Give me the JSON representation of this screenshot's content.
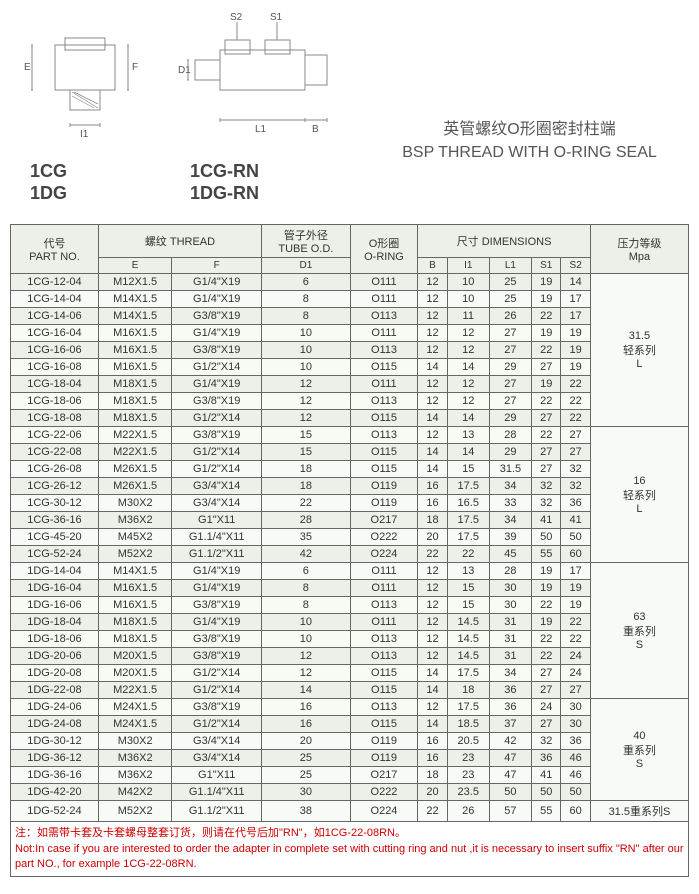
{
  "diagrams": {
    "left_labels": [
      "1CG",
      "1DG"
    ],
    "right_labels": [
      "1CG-RN",
      "1DG-RN"
    ],
    "dims_left": {
      "E": "E",
      "F": "F",
      "I1": "I1"
    },
    "dims_right": {
      "D1": "D1",
      "S2": "S2",
      "S1": "S1",
      "L1": "L1",
      "B": "B"
    }
  },
  "title": {
    "cn": "英管螺纹O形圈密封柱端",
    "en": "BSP THREAD WITH O-RING SEAL"
  },
  "headers": {
    "part_no": "代号\nPART NO.",
    "thread": "螺纹 THREAD",
    "tube_od": "管子外径\nTUBE O.D.",
    "oring": "O形圈\nO-RING",
    "dimensions": "尺寸 DIMENSIONS",
    "pressure": "压力等级\nMpa",
    "E": "E",
    "F": "F",
    "D1": "D1",
    "B": "B",
    "I1": "I1",
    "L1": "L1",
    "S1": "S1",
    "S2": "S2"
  },
  "rows": [
    {
      "pn": "1CG-12-04",
      "E": "M12X1.5",
      "F": "G1/4\"X19",
      "D1": "6",
      "O": "O111",
      "B": "12",
      "I1": "10",
      "L1": "25",
      "S1": "19",
      "S2": "14"
    },
    {
      "pn": "1CG-14-04",
      "E": "M14X1.5",
      "F": "G1/4\"X19",
      "D1": "8",
      "O": "O111",
      "B": "12",
      "I1": "10",
      "L1": "25",
      "S1": "19",
      "S2": "17"
    },
    {
      "pn": "1CG-14-06",
      "E": "M14X1.5",
      "F": "G3/8\"X19",
      "D1": "8",
      "O": "O113",
      "B": "12",
      "I1": "11",
      "L1": "26",
      "S1": "22",
      "S2": "17"
    },
    {
      "pn": "1CG-16-04",
      "E": "M16X1.5",
      "F": "G1/4\"X19",
      "D1": "10",
      "O": "O111",
      "B": "12",
      "I1": "12",
      "L1": "27",
      "S1": "19",
      "S2": "19"
    },
    {
      "pn": "1CG-16-06",
      "E": "M16X1.5",
      "F": "G3/8\"X19",
      "D1": "10",
      "O": "O113",
      "B": "12",
      "I1": "12",
      "L1": "27",
      "S1": "22",
      "S2": "19"
    },
    {
      "pn": "1CG-16-08",
      "E": "M16X1.5",
      "F": "G1/2\"X14",
      "D1": "10",
      "O": "O115",
      "B": "14",
      "I1": "14",
      "L1": "29",
      "S1": "27",
      "S2": "19"
    },
    {
      "pn": "1CG-18-04",
      "E": "M18X1.5",
      "F": "G1/4\"X19",
      "D1": "12",
      "O": "O111",
      "B": "12",
      "I1": "12",
      "L1": "27",
      "S1": "19",
      "S2": "22"
    },
    {
      "pn": "1CG-18-06",
      "E": "M18X1.5",
      "F": "G3/8\"X19",
      "D1": "12",
      "O": "O113",
      "B": "12",
      "I1": "12",
      "L1": "27",
      "S1": "22",
      "S2": "22"
    },
    {
      "pn": "1CG-18-08",
      "E": "M18X1.5",
      "F": "G1/2\"X14",
      "D1": "12",
      "O": "O115",
      "B": "14",
      "I1": "14",
      "L1": "29",
      "S1": "27",
      "S2": "22"
    },
    {
      "pn": "1CG-22-06",
      "E": "M22X1.5",
      "F": "G3/8\"X19",
      "D1": "15",
      "O": "O113",
      "B": "12",
      "I1": "13",
      "L1": "28",
      "S1": "22",
      "S2": "27"
    },
    {
      "pn": "1CG-22-08",
      "E": "M22X1.5",
      "F": "G1/2\"X14",
      "D1": "15",
      "O": "O115",
      "B": "14",
      "I1": "14",
      "L1": "29",
      "S1": "27",
      "S2": "27"
    },
    {
      "pn": "1CG-26-08",
      "E": "M26X1.5",
      "F": "G1/2\"X14",
      "D1": "18",
      "O": "O115",
      "B": "14",
      "I1": "15",
      "L1": "31.5",
      "S1": "27",
      "S2": "32"
    },
    {
      "pn": "1CG-26-12",
      "E": "M26X1.5",
      "F": "G3/4\"X14",
      "D1": "18",
      "O": "O119",
      "B": "16",
      "I1": "17.5",
      "L1": "34",
      "S1": "32",
      "S2": "32"
    },
    {
      "pn": "1CG-30-12",
      "E": "M30X2",
      "F": "G3/4\"X14",
      "D1": "22",
      "O": "O119",
      "B": "16",
      "I1": "16.5",
      "L1": "33",
      "S1": "32",
      "S2": "36"
    },
    {
      "pn": "1CG-36-16",
      "E": "M36X2",
      "F": "G1\"X11",
      "D1": "28",
      "O": "O217",
      "B": "18",
      "I1": "17.5",
      "L1": "34",
      "S1": "41",
      "S2": "41"
    },
    {
      "pn": "1CG-45-20",
      "E": "M45X2",
      "F": "G1.1/4\"X11",
      "D1": "35",
      "O": "O222",
      "B": "20",
      "I1": "17.5",
      "L1": "39",
      "S1": "50",
      "S2": "50"
    },
    {
      "pn": "1CG-52-24",
      "E": "M52X2",
      "F": "G1.1/2\"X11",
      "D1": "42",
      "O": "O224",
      "B": "22",
      "I1": "22",
      "L1": "45",
      "S1": "55",
      "S2": "60"
    },
    {
      "pn": "1DG-14-04",
      "E": "M14X1.5",
      "F": "G1/4\"X19",
      "D1": "6",
      "O": "O111",
      "B": "12",
      "I1": "13",
      "L1": "28",
      "S1": "19",
      "S2": "17"
    },
    {
      "pn": "1DG-16-04",
      "E": "M16X1.5",
      "F": "G1/4\"X19",
      "D1": "8",
      "O": "O111",
      "B": "12",
      "I1": "15",
      "L1": "30",
      "S1": "19",
      "S2": "19"
    },
    {
      "pn": "1DG-16-06",
      "E": "M16X1.5",
      "F": "G3/8\"X19",
      "D1": "8",
      "O": "O113",
      "B": "12",
      "I1": "15",
      "L1": "30",
      "S1": "22",
      "S2": "19"
    },
    {
      "pn": "1DG-18-04",
      "E": "M18X1.5",
      "F": "G1/4\"X19",
      "D1": "10",
      "O": "O111",
      "B": "12",
      "I1": "14.5",
      "L1": "31",
      "S1": "19",
      "S2": "22"
    },
    {
      "pn": "1DG-18-06",
      "E": "M18X1.5",
      "F": "G3/8\"X19",
      "D1": "10",
      "O": "O113",
      "B": "12",
      "I1": "14.5",
      "L1": "31",
      "S1": "22",
      "S2": "22"
    },
    {
      "pn": "1DG-20-06",
      "E": "M20X1.5",
      "F": "G3/8\"X19",
      "D1": "12",
      "O": "O113",
      "B": "12",
      "I1": "14.5",
      "L1": "31",
      "S1": "22",
      "S2": "24"
    },
    {
      "pn": "1DG-20-08",
      "E": "M20X1.5",
      "F": "G1/2\"X14",
      "D1": "12",
      "O": "O115",
      "B": "14",
      "I1": "17.5",
      "L1": "34",
      "S1": "27",
      "S2": "24"
    },
    {
      "pn": "1DG-22-08",
      "E": "M22X1.5",
      "F": "G1/2\"X14",
      "D1": "14",
      "O": "O115",
      "B": "14",
      "I1": "18",
      "L1": "36",
      "S1": "27",
      "S2": "27"
    },
    {
      "pn": "1DG-24-06",
      "E": "M24X1.5",
      "F": "G3/8\"X19",
      "D1": "16",
      "O": "O113",
      "B": "12",
      "I1": "17.5",
      "L1": "36",
      "S1": "24",
      "S2": "30"
    },
    {
      "pn": "1DG-24-08",
      "E": "M24X1.5",
      "F": "G1/2\"X14",
      "D1": "16",
      "O": "O115",
      "B": "14",
      "I1": "18.5",
      "L1": "37",
      "S1": "27",
      "S2": "30"
    },
    {
      "pn": "1DG-30-12",
      "E": "M30X2",
      "F": "G3/4\"X14",
      "D1": "20",
      "O": "O119",
      "B": "16",
      "I1": "20.5",
      "L1": "42",
      "S1": "32",
      "S2": "36"
    },
    {
      "pn": "1DG-36-12",
      "E": "M36X2",
      "F": "G3/4\"X14",
      "D1": "25",
      "O": "O119",
      "B": "16",
      "I1": "23",
      "L1": "47",
      "S1": "36",
      "S2": "46"
    },
    {
      "pn": "1DG-36-16",
      "E": "M36X2",
      "F": "G1\"X11",
      "D1": "25",
      "O": "O217",
      "B": "18",
      "I1": "23",
      "L1": "47",
      "S1": "41",
      "S2": "46"
    },
    {
      "pn": "1DG-42-20",
      "E": "M42X2",
      "F": "G1.1/4\"X11",
      "D1": "30",
      "O": "O222",
      "B": "20",
      "I1": "23.5",
      "L1": "50",
      "S1": "50",
      "S2": "50"
    },
    {
      "pn": "1DG-52-24",
      "E": "M52X2",
      "F": "G1.1/2\"X11",
      "D1": "38",
      "O": "O224",
      "B": "22",
      "I1": "26",
      "L1": "57",
      "S1": "55",
      "S2": "60"
    }
  ],
  "ratings": [
    {
      "rowspan": 9,
      "text": "31.5\n轻系列\nL"
    },
    {
      "rowspan": 8,
      "text": "16\n轻系列\nL"
    },
    {
      "rowspan": 8,
      "text": "63\n重系列\nS"
    },
    {
      "rowspan": 6,
      "text": "40\n重系列\nS"
    },
    {
      "rowspan": 1,
      "text": "31.5重系列S"
    }
  ],
  "note": {
    "cn": "注：如需带卡套及卡套螺母整套订货，则请在代号后加\"RN\"，如1CG-22-08RN。",
    "en": "Not:In case if you are interested to order the adapter in complete set with cutting ring and nut ,it is necessary to insert suffix \"RN\" after our part NO., for example  1CG-22-08RN."
  },
  "colors": {
    "header_bg": "#ecf0e8",
    "row_odd_bg": "#ecf0e8",
    "row_even_bg": "#f8faf5",
    "border": "#666",
    "note_text": "#c00",
    "text": "#333"
  }
}
